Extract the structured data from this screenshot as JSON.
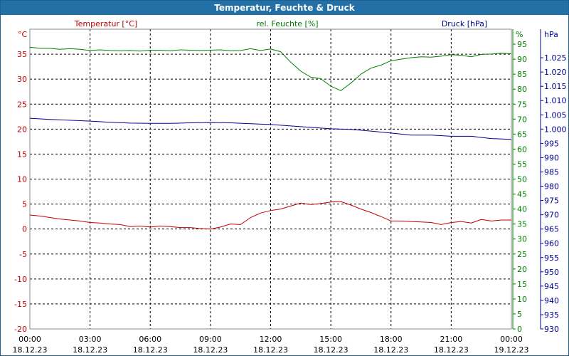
{
  "window": {
    "title": "Temperatur, Feuchte & Druck"
  },
  "chart_data": {
    "type": "line",
    "title": "Temperatur, Feuchte & Druck",
    "grid": true,
    "x": [
      "00:00|18.12.23",
      "03:00|18.12.23",
      "06:00|18.12.23",
      "09:00|18.12.23",
      "12:00|18.12.23",
      "15:00|18.12.23",
      "18:00|18.12.23",
      "21:00|18.12.23",
      "00:00|19.12.23"
    ],
    "x_ticks": [
      {
        "time": "00:00",
        "date": "18.12.23",
        "h": 0
      },
      {
        "time": "03:00",
        "date": "18.12.23",
        "h": 3
      },
      {
        "time": "06:00",
        "date": "18.12.23",
        "h": 6
      },
      {
        "time": "09:00",
        "date": "18.12.23",
        "h": 9
      },
      {
        "time": "12:00",
        "date": "18.12.23",
        "h": 12
      },
      {
        "time": "15:00",
        "date": "18.12.23",
        "h": 15
      },
      {
        "time": "18:00",
        "date": "18.12.23",
        "h": 18
      },
      {
        "time": "21:00",
        "date": "18.12.23",
        "h": 21
      },
      {
        "time": "00:00",
        "date": "19.12.23",
        "h": 24
      }
    ],
    "axes": {
      "temperature": {
        "label": "Temperatur [°C]",
        "unit": "°C",
        "range": [
          -20,
          40
        ],
        "ticks": [
          "-20",
          "-15",
          "-10",
          "-5",
          "0",
          "5",
          "10",
          "15",
          "20",
          "25",
          "30",
          "35"
        ],
        "color": "#c00000"
      },
      "humidity": {
        "label": "rel. Feuchte [%]",
        "unit": "%",
        "range": [
          0,
          100
        ],
        "ticks": [
          "0",
          "5",
          "10",
          "15",
          "20",
          "25",
          "30",
          "35",
          "40",
          "45",
          "50",
          "55",
          "60",
          "65",
          "70",
          "75",
          "80",
          "85",
          "90",
          "95"
        ],
        "color": "#008000"
      },
      "pressure": {
        "label": "Druck [hPa]",
        "unit": "hPa",
        "range": [
          930,
          1035
        ],
        "ticks": [
          "930",
          "935",
          "940",
          "945",
          "950",
          "955",
          "960",
          "965",
          "970",
          "975",
          "980",
          "985",
          "990",
          "995",
          "1.000",
          "1.005",
          "1.010",
          "1.015",
          "1.020",
          "1.025"
        ],
        "color": "#000090"
      }
    },
    "series": [
      {
        "name": "Temperatur [°C]",
        "axis": "temperature",
        "color": "#c00000",
        "points": [
          [
            0,
            2.8
          ],
          [
            0.5,
            2.6
          ],
          [
            1,
            2.3
          ],
          [
            1.5,
            2.0
          ],
          [
            2,
            1.8
          ],
          [
            2.5,
            1.6
          ],
          [
            3,
            1.3
          ],
          [
            3.5,
            1.2
          ],
          [
            4,
            1.0
          ],
          [
            4.5,
            0.9
          ],
          [
            5,
            0.5
          ],
          [
            5.5,
            0.6
          ],
          [
            6,
            0.4
          ],
          [
            6.5,
            0.6
          ],
          [
            7,
            0.5
          ],
          [
            7.5,
            0.3
          ],
          [
            8,
            0.3
          ],
          [
            8.5,
            0.1
          ],
          [
            9,
            0.0
          ],
          [
            9.5,
            0.4
          ],
          [
            10,
            1.0
          ],
          [
            10.5,
            0.9
          ],
          [
            11,
            2.3
          ],
          [
            11.5,
            3.2
          ],
          [
            12,
            3.7
          ],
          [
            12.5,
            4.0
          ],
          [
            13,
            4.6
          ],
          [
            13.5,
            5.2
          ],
          [
            14,
            4.9
          ],
          [
            14.5,
            5.1
          ],
          [
            15,
            5.4
          ],
          [
            15.5,
            5.5
          ],
          [
            16,
            4.8
          ],
          [
            16.5,
            4.0
          ],
          [
            17,
            3.3
          ],
          [
            17.5,
            2.5
          ],
          [
            18,
            1.6
          ],
          [
            18.5,
            1.6
          ],
          [
            19,
            1.5
          ],
          [
            19.5,
            1.4
          ],
          [
            20,
            1.3
          ],
          [
            20.5,
            0.9
          ],
          [
            21,
            1.3
          ],
          [
            21.5,
            1.5
          ],
          [
            22,
            1.2
          ],
          [
            22.5,
            1.9
          ],
          [
            23,
            1.6
          ],
          [
            23.5,
            1.8
          ],
          [
            24,
            1.8
          ]
        ]
      },
      {
        "name": "rel. Feuchte [%]",
        "axis": "humidity",
        "color": "#008000",
        "points": [
          [
            0,
            94.0
          ],
          [
            0.5,
            93.6
          ],
          [
            1,
            93.6
          ],
          [
            1.5,
            93.3
          ],
          [
            2,
            93.5
          ],
          [
            2.5,
            93.3
          ],
          [
            3,
            92.9
          ],
          [
            3.5,
            93.1
          ],
          [
            4,
            92.9
          ],
          [
            4.5,
            92.8
          ],
          [
            5,
            92.9
          ],
          [
            5.5,
            92.7
          ],
          [
            6,
            93.0
          ],
          [
            6.5,
            93.0
          ],
          [
            7,
            92.8
          ],
          [
            7.5,
            93.1
          ],
          [
            8,
            93.0
          ],
          [
            8.5,
            92.9
          ],
          [
            9,
            93.0
          ],
          [
            9.5,
            93.1
          ],
          [
            10,
            92.8
          ],
          [
            10.5,
            92.9
          ],
          [
            11,
            93.5
          ],
          [
            11.5,
            92.9
          ],
          [
            12,
            93.4
          ],
          [
            12.5,
            92.5
          ],
          [
            13,
            89.0
          ],
          [
            13.5,
            86.0
          ],
          [
            14,
            84.0
          ],
          [
            14.5,
            83.5
          ],
          [
            15,
            81.0
          ],
          [
            15.5,
            79.5
          ],
          [
            16,
            82.0
          ],
          [
            16.5,
            85.0
          ],
          [
            17,
            87.0
          ],
          [
            17.5,
            88.0
          ],
          [
            18,
            89.5
          ],
          [
            18.5,
            90.0
          ],
          [
            19,
            90.5
          ],
          [
            19.5,
            90.8
          ],
          [
            20,
            90.7
          ],
          [
            20.5,
            91.0
          ],
          [
            21,
            91.5
          ],
          [
            21.5,
            91.3
          ],
          [
            22,
            90.8
          ],
          [
            22.5,
            91.6
          ],
          [
            23,
            91.7
          ],
          [
            23.5,
            92.0
          ],
          [
            24,
            91.8
          ]
        ]
      },
      {
        "name": "Druck [hPa]",
        "axis": "pressure",
        "color": "#000090",
        "points": [
          [
            0,
            1003.8
          ],
          [
            1,
            1003.4
          ],
          [
            2,
            1003.1
          ],
          [
            3,
            1002.8
          ],
          [
            4,
            1002.4
          ],
          [
            5,
            1002.1
          ],
          [
            6,
            1002.0
          ],
          [
            7,
            1002.0
          ],
          [
            8,
            1002.2
          ],
          [
            9,
            1002.3
          ],
          [
            10,
            1002.2
          ],
          [
            11,
            1001.9
          ],
          [
            12,
            1001.6
          ],
          [
            13,
            1001.1
          ],
          [
            14,
            1000.6
          ],
          [
            15,
            1000.1
          ],
          [
            16,
            999.9
          ],
          [
            17,
            999.3
          ],
          [
            18,
            998.6
          ],
          [
            19,
            997.9
          ],
          [
            20,
            997.9
          ],
          [
            21,
            997.5
          ],
          [
            22,
            997.5
          ],
          [
            23,
            996.7
          ],
          [
            24,
            996.4
          ]
        ]
      }
    ]
  }
}
